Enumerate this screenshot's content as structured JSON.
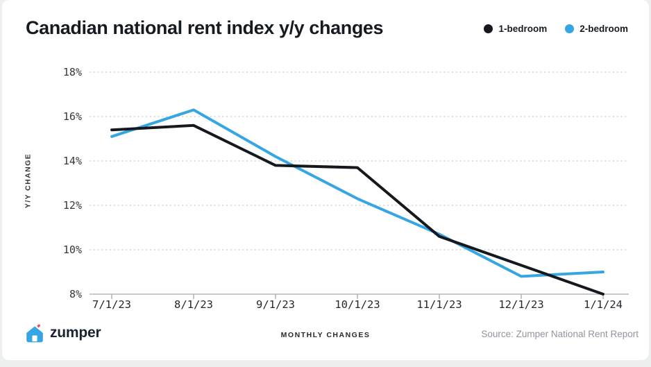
{
  "card": {
    "footer": {
      "logo_text": "zumper",
      "source": "Source: Zumper National Rent Report"
    }
  },
  "chart_data": {
    "type": "line",
    "title": "Canadian national rent index y/y changes",
    "categories": [
      "7/1/23",
      "8/1/23",
      "9/1/23",
      "10/1/23",
      "11/1/23",
      "12/1/23",
      "1/1/24"
    ],
    "series": [
      {
        "name": "1-bedroom",
        "color": "#15181d",
        "values": [
          15.4,
          15.6,
          13.8,
          13.7,
          10.6,
          9.3,
          8.0
        ]
      },
      {
        "name": "2-bedroom",
        "color": "#36a6e3",
        "values": [
          15.1,
          16.3,
          14.2,
          12.3,
          10.7,
          8.8,
          9.0
        ]
      }
    ],
    "xlabel": "MONTHLY CHANGES",
    "ylabel": "Y/Y CHANGE",
    "ylim": [
      8,
      18
    ],
    "yticks": [
      8,
      10,
      12,
      14,
      16,
      18
    ],
    "ytick_labels": [
      "8%",
      "10%",
      "12%",
      "14%",
      "16%",
      "18%"
    ],
    "grid": "horizontal dotted, solid baseline at 8%",
    "legend_position": "top-right"
  }
}
